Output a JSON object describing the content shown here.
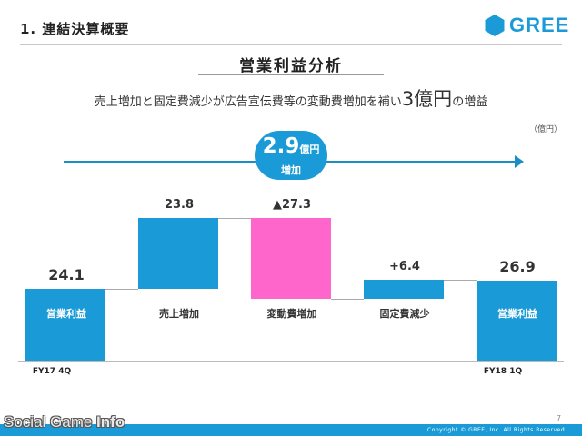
{
  "section_title": "1. 連結決算概要",
  "logo": {
    "text": "GREE",
    "color": "#1a9bd7"
  },
  "slide_title": "営業利益分析",
  "subtitle": {
    "pre": "売上増加と固定費減少が広告宣伝費等の変動費増加を補い",
    "big": "3億円",
    "post": "の増益"
  },
  "unit_label": "（億円）",
  "badge": {
    "value": "2.9",
    "unit": "億円",
    "label": "増加"
  },
  "colors": {
    "blue": "#1a9bd7",
    "pink": "#ff66cc"
  },
  "chart_data": {
    "type": "waterfall",
    "ylabel": "億円",
    "steps": [
      {
        "category": "営業利益",
        "value": 24.1,
        "label": "24.1",
        "kind": "total",
        "period": "FY17 4Q"
      },
      {
        "category": "売上増加",
        "value": 23.8,
        "label": "23.8",
        "kind": "increase"
      },
      {
        "category": "変動費増加",
        "value": -27.3,
        "label": "▲27.3",
        "kind": "decrease"
      },
      {
        "category": "固定費減少",
        "value": 6.4,
        "label": "+6.4",
        "kind": "increase"
      },
      {
        "category": "営業利益",
        "value": 26.9,
        "label": "26.9",
        "kind": "total",
        "period": "FY18 1Q"
      }
    ]
  },
  "page_number": "7",
  "copyright": "Copyright © GREE, Inc. All Rights Reserved.",
  "watermark": {
    "part1": "Social Game ",
    "part2": "Info"
  }
}
